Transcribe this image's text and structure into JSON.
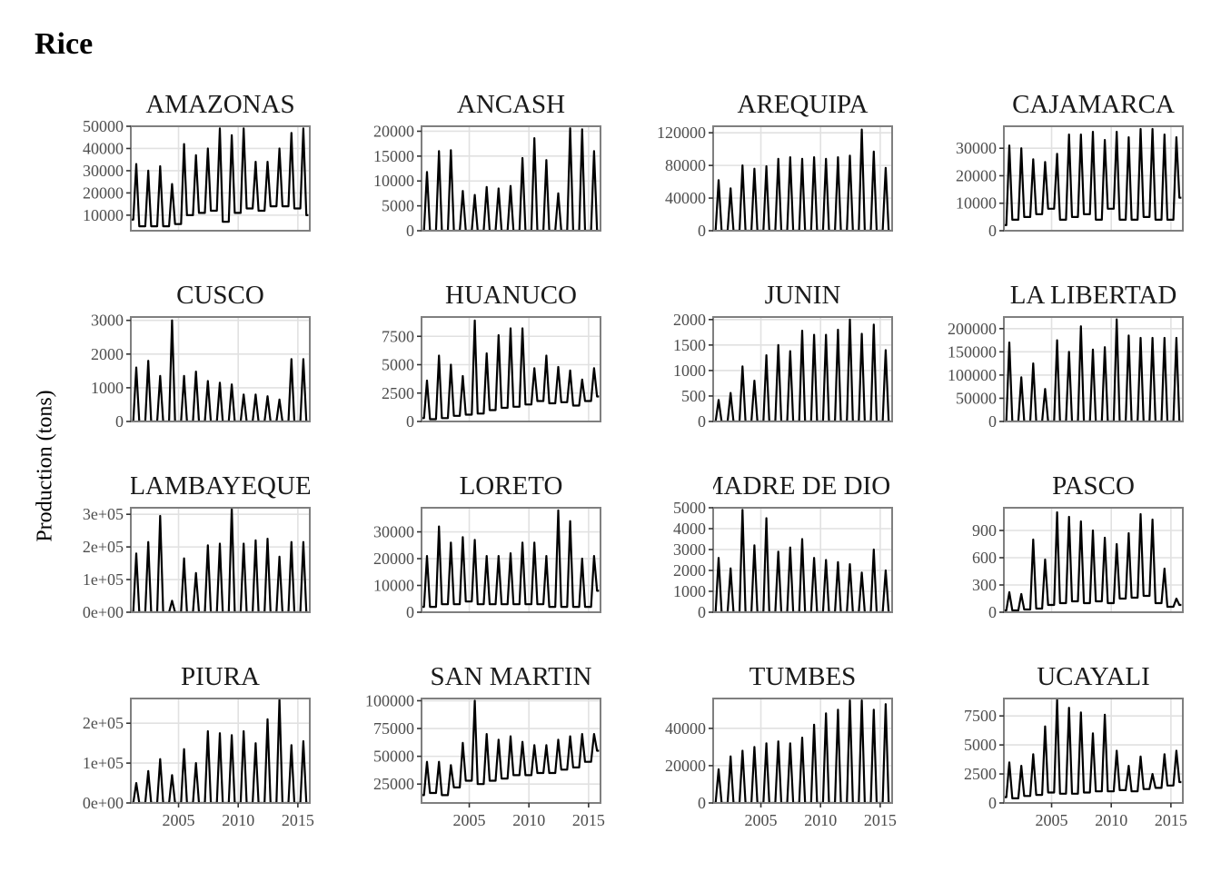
{
  "chart_data": {
    "type": "line",
    "title": "Rice",
    "xlabel": "",
    "ylabel": "Production (tons)",
    "x_range": [
      2001,
      2016
    ],
    "x_ticks": [
      2005,
      2010,
      2015
    ],
    "x_tick_labels": [
      "2005",
      "2010",
      "2015"
    ],
    "grid": true,
    "line_color": "#000000",
    "layout": "facet-grid 4x4",
    "x": [
      2001,
      2002,
      2003,
      2004,
      2005,
      2006,
      2007,
      2008,
      2009,
      2010,
      2011,
      2012,
      2013,
      2014,
      2015,
      2016
    ],
    "series": [
      {
        "name": "AMAZONAS",
        "ylim": [
          3000,
          50000
        ],
        "yticks": [
          10000,
          20000,
          30000,
          40000,
          50000
        ],
        "ytick_labels": [
          "10000",
          "20000",
          "30000",
          "40000",
          "50000"
        ],
        "annual_peaks": [
          33000,
          30000,
          32000,
          24000,
          42000,
          37000,
          40000,
          49000,
          46000,
          49000,
          34000,
          34000,
          40000,
          47000,
          49000,
          36000
        ],
        "annual_lows": [
          8000,
          5000,
          5000,
          5000,
          6000,
          10000,
          11000,
          12000,
          7000,
          11000,
          13000,
          12000,
          14000,
          14000,
          13000,
          10000
        ]
      },
      {
        "name": "ANCASH",
        "ylim": [
          0,
          21000
        ],
        "yticks": [
          0,
          5000,
          10000,
          15000,
          20000
        ],
        "ytick_labels": [
          "0",
          "5000",
          "10000",
          "15000",
          "20000"
        ],
        "annual_peaks": [
          11800,
          16000,
          16200,
          8000,
          7200,
          8800,
          8500,
          9000,
          14600,
          18600,
          14200,
          7500,
          20600,
          20400,
          16000,
          0
        ],
        "annual_lows": [
          0,
          0,
          0,
          0,
          0,
          0,
          0,
          0,
          0,
          0,
          0,
          0,
          0,
          0,
          0,
          0
        ]
      },
      {
        "name": "AREQUIPA",
        "ylim": [
          0,
          128000
        ],
        "yticks": [
          0,
          40000,
          80000,
          120000
        ],
        "ytick_labels": [
          "0",
          "40000",
          "80000",
          "120000"
        ],
        "annual_peaks": [
          62000,
          52000,
          80000,
          76000,
          79000,
          88000,
          90000,
          88000,
          90000,
          88000,
          90000,
          92000,
          124000,
          97000,
          77000,
          0
        ],
        "annual_lows": [
          0,
          0,
          0,
          0,
          0,
          0,
          0,
          0,
          0,
          0,
          0,
          0,
          0,
          0,
          0,
          0
        ]
      },
      {
        "name": "CAJAMARCA",
        "ylim": [
          0,
          38000
        ],
        "yticks": [
          0,
          10000,
          20000,
          30000
        ],
        "ytick_labels": [
          "0",
          "10000",
          "20000",
          "30000"
        ],
        "annual_peaks": [
          31000,
          30000,
          26000,
          25000,
          28000,
          35000,
          35000,
          36000,
          33000,
          36000,
          34000,
          37000,
          37000,
          35000,
          34000,
          20000
        ],
        "annual_lows": [
          2000,
          4000,
          5000,
          6000,
          8000,
          4000,
          5000,
          6000,
          4000,
          8000,
          4000,
          4000,
          5000,
          4000,
          4000,
          12000
        ]
      },
      {
        "name": "CUSCO",
        "ylim": [
          0,
          3100
        ],
        "yticks": [
          0,
          1000,
          2000,
          3000
        ],
        "ytick_labels": [
          "0",
          "1000",
          "2000",
          "3000"
        ],
        "annual_peaks": [
          1600,
          1800,
          1350,
          3000,
          1350,
          1480,
          1200,
          1150,
          1100,
          800,
          800,
          750,
          650,
          1850,
          1850,
          0
        ],
        "annual_lows": [
          0,
          0,
          0,
          0,
          0,
          0,
          0,
          0,
          0,
          0,
          0,
          0,
          0,
          0,
          0,
          0
        ]
      },
      {
        "name": "HUANUCO",
        "ylim": [
          0,
          9200
        ],
        "yticks": [
          0,
          2500,
          5000,
          7500
        ],
        "ytick_labels": [
          "0",
          "2500",
          "5000",
          "7500"
        ],
        "annual_peaks": [
          3600,
          5800,
          5000,
          4000,
          8900,
          6000,
          7600,
          8200,
          8200,
          4700,
          5800,
          4800,
          4500,
          3700,
          4700,
          2500
        ],
        "annual_lows": [
          300,
          200,
          300,
          500,
          600,
          700,
          1000,
          1200,
          1300,
          1500,
          1800,
          1600,
          1700,
          1400,
          1800,
          2200
        ]
      },
      {
        "name": "JUNIN",
        "ylim": [
          0,
          2050
        ],
        "yticks": [
          0,
          500,
          1000,
          1500,
          2000
        ],
        "ytick_labels": [
          "0",
          "500",
          "1000",
          "1500",
          "2000"
        ],
        "annual_peaks": [
          420,
          560,
          1080,
          800,
          1300,
          1500,
          1380,
          1780,
          1700,
          1700,
          1800,
          2000,
          1720,
          1900,
          1400,
          0
        ],
        "annual_lows": [
          0,
          0,
          0,
          0,
          0,
          0,
          0,
          0,
          0,
          0,
          0,
          0,
          0,
          0,
          0,
          0
        ]
      },
      {
        "name": "LA LIBERTAD",
        "ylim": [
          0,
          225000
        ],
        "yticks": [
          0,
          50000,
          100000,
          150000,
          200000
        ],
        "ytick_labels": [
          "0",
          "50000",
          "100000",
          "150000",
          "200000"
        ],
        "annual_peaks": [
          170000,
          95000,
          125000,
          70000,
          175000,
          150000,
          205000,
          155000,
          160000,
          220000,
          185000,
          180000,
          180000,
          180000,
          180000,
          0
        ],
        "annual_lows": [
          0,
          0,
          0,
          0,
          0,
          0,
          0,
          0,
          0,
          0,
          0,
          0,
          0,
          0,
          0,
          0
        ]
      },
      {
        "name": "LAMBAYEQUE",
        "ylim": [
          0,
          320000
        ],
        "yticks": [
          0,
          100000,
          200000,
          300000
        ],
        "ytick_labels": [
          "0e+00",
          "1e+05",
          "2e+05",
          "3e+05"
        ],
        "annual_peaks": [
          180000,
          215000,
          295000,
          35000,
          165000,
          120000,
          205000,
          210000,
          320000,
          210000,
          220000,
          225000,
          170000,
          215000,
          215000,
          0
        ],
        "annual_lows": [
          0,
          0,
          0,
          0,
          0,
          0,
          0,
          0,
          0,
          0,
          0,
          0,
          0,
          0,
          0,
          0
        ]
      },
      {
        "name": "LORETO",
        "ylim": [
          0,
          39000
        ],
        "yticks": [
          0,
          10000,
          20000,
          30000
        ],
        "ytick_labels": [
          "0",
          "10000",
          "20000",
          "30000"
        ],
        "annual_peaks": [
          21000,
          32000,
          26000,
          28000,
          27000,
          21000,
          21000,
          22000,
          26000,
          26000,
          21000,
          38000,
          34000,
          20000,
          21000,
          17000
        ],
        "annual_lows": [
          2000,
          2000,
          3000,
          3000,
          4000,
          3000,
          3000,
          3000,
          3000,
          3000,
          3000,
          2000,
          2000,
          2000,
          2000,
          8000
        ]
      },
      {
        "name": "MADRE DE DIOS",
        "ylim": [
          0,
          5000
        ],
        "yticks": [
          0,
          1000,
          2000,
          3000,
          4000,
          5000
        ],
        "ytick_labels": [
          "0",
          "1000",
          "2000",
          "3000",
          "4000",
          "5000"
        ],
        "annual_peaks": [
          2600,
          2100,
          4900,
          3200,
          4500,
          2900,
          3100,
          3500,
          2600,
          2500,
          2400,
          2300,
          1900,
          3000,
          2000,
          0
        ],
        "annual_lows": [
          0,
          0,
          0,
          0,
          0,
          0,
          0,
          0,
          0,
          0,
          0,
          0,
          0,
          0,
          0,
          0
        ]
      },
      {
        "name": "PASCO",
        "ylim": [
          0,
          1150
        ],
        "yticks": [
          0,
          300,
          600,
          900
        ],
        "ytick_labels": [
          "0",
          "300",
          "600",
          "900"
        ],
        "annual_peaks": [
          220,
          200,
          800,
          580,
          1100,
          1050,
          1000,
          900,
          820,
          750,
          870,
          1080,
          1020,
          480,
          150,
          130
        ],
        "annual_lows": [
          20,
          20,
          30,
          40,
          80,
          100,
          120,
          100,
          120,
          100,
          150,
          160,
          180,
          100,
          60,
          80
        ]
      },
      {
        "name": "PIURA",
        "ylim": [
          0,
          262000
        ],
        "yticks": [
          0,
          100000,
          200000
        ],
        "ytick_labels": [
          "0e+00",
          "1e+05",
          "2e+05"
        ],
        "annual_peaks": [
          50000,
          80000,
          110000,
          70000,
          135000,
          100000,
          180000,
          175000,
          170000,
          180000,
          150000,
          210000,
          260000,
          145000,
          155000,
          50000
        ],
        "annual_lows": [
          0,
          0,
          0,
          0,
          0,
          0,
          0,
          0,
          0,
          0,
          0,
          0,
          0,
          0,
          0,
          0
        ]
      },
      {
        "name": "SAN MARTIN",
        "ylim": [
          8000,
          102000
        ],
        "yticks": [
          25000,
          50000,
          75000,
          100000
        ],
        "ytick_labels": [
          "25000",
          "50000",
          "75000",
          "100000"
        ],
        "annual_peaks": [
          45000,
          45000,
          42000,
          62000,
          100000,
          70000,
          65000,
          68000,
          63000,
          60000,
          60000,
          65000,
          68000,
          70000,
          70000,
          78000
        ],
        "annual_lows": [
          15000,
          17000,
          15000,
          22000,
          28000,
          25000,
          28000,
          30000,
          33000,
          33000,
          35000,
          35000,
          38000,
          40000,
          45000,
          55000
        ]
      },
      {
        "name": "TUMBES",
        "ylim": [
          0,
          56000
        ],
        "yticks": [
          0,
          20000,
          40000
        ],
        "ytick_labels": [
          "0",
          "20000",
          "40000"
        ],
        "annual_peaks": [
          18000,
          25000,
          28000,
          30000,
          32000,
          33000,
          32000,
          35000,
          42000,
          48000,
          50000,
          55000,
          55000,
          50000,
          53000,
          56000
        ],
        "annual_lows": [
          0,
          0,
          0,
          0,
          0,
          0,
          0,
          0,
          0,
          0,
          0,
          0,
          0,
          0,
          0,
          0
        ]
      },
      {
        "name": "UCAYALI",
        "ylim": [
          0,
          9000
        ],
        "yticks": [
          0,
          2500,
          5000,
          7500
        ],
        "ytick_labels": [
          "0",
          "2500",
          "5000",
          "7500"
        ],
        "annual_peaks": [
          3500,
          3200,
          4200,
          6600,
          8900,
          8200,
          7800,
          6000,
          7600,
          4500,
          3200,
          4000,
          2500,
          4200,
          4500,
          2700
        ],
        "annual_lows": [
          500,
          400,
          600,
          700,
          900,
          800,
          800,
          900,
          1000,
          1000,
          1100,
          1000,
          1200,
          1300,
          1500,
          1800
        ]
      }
    ]
  }
}
